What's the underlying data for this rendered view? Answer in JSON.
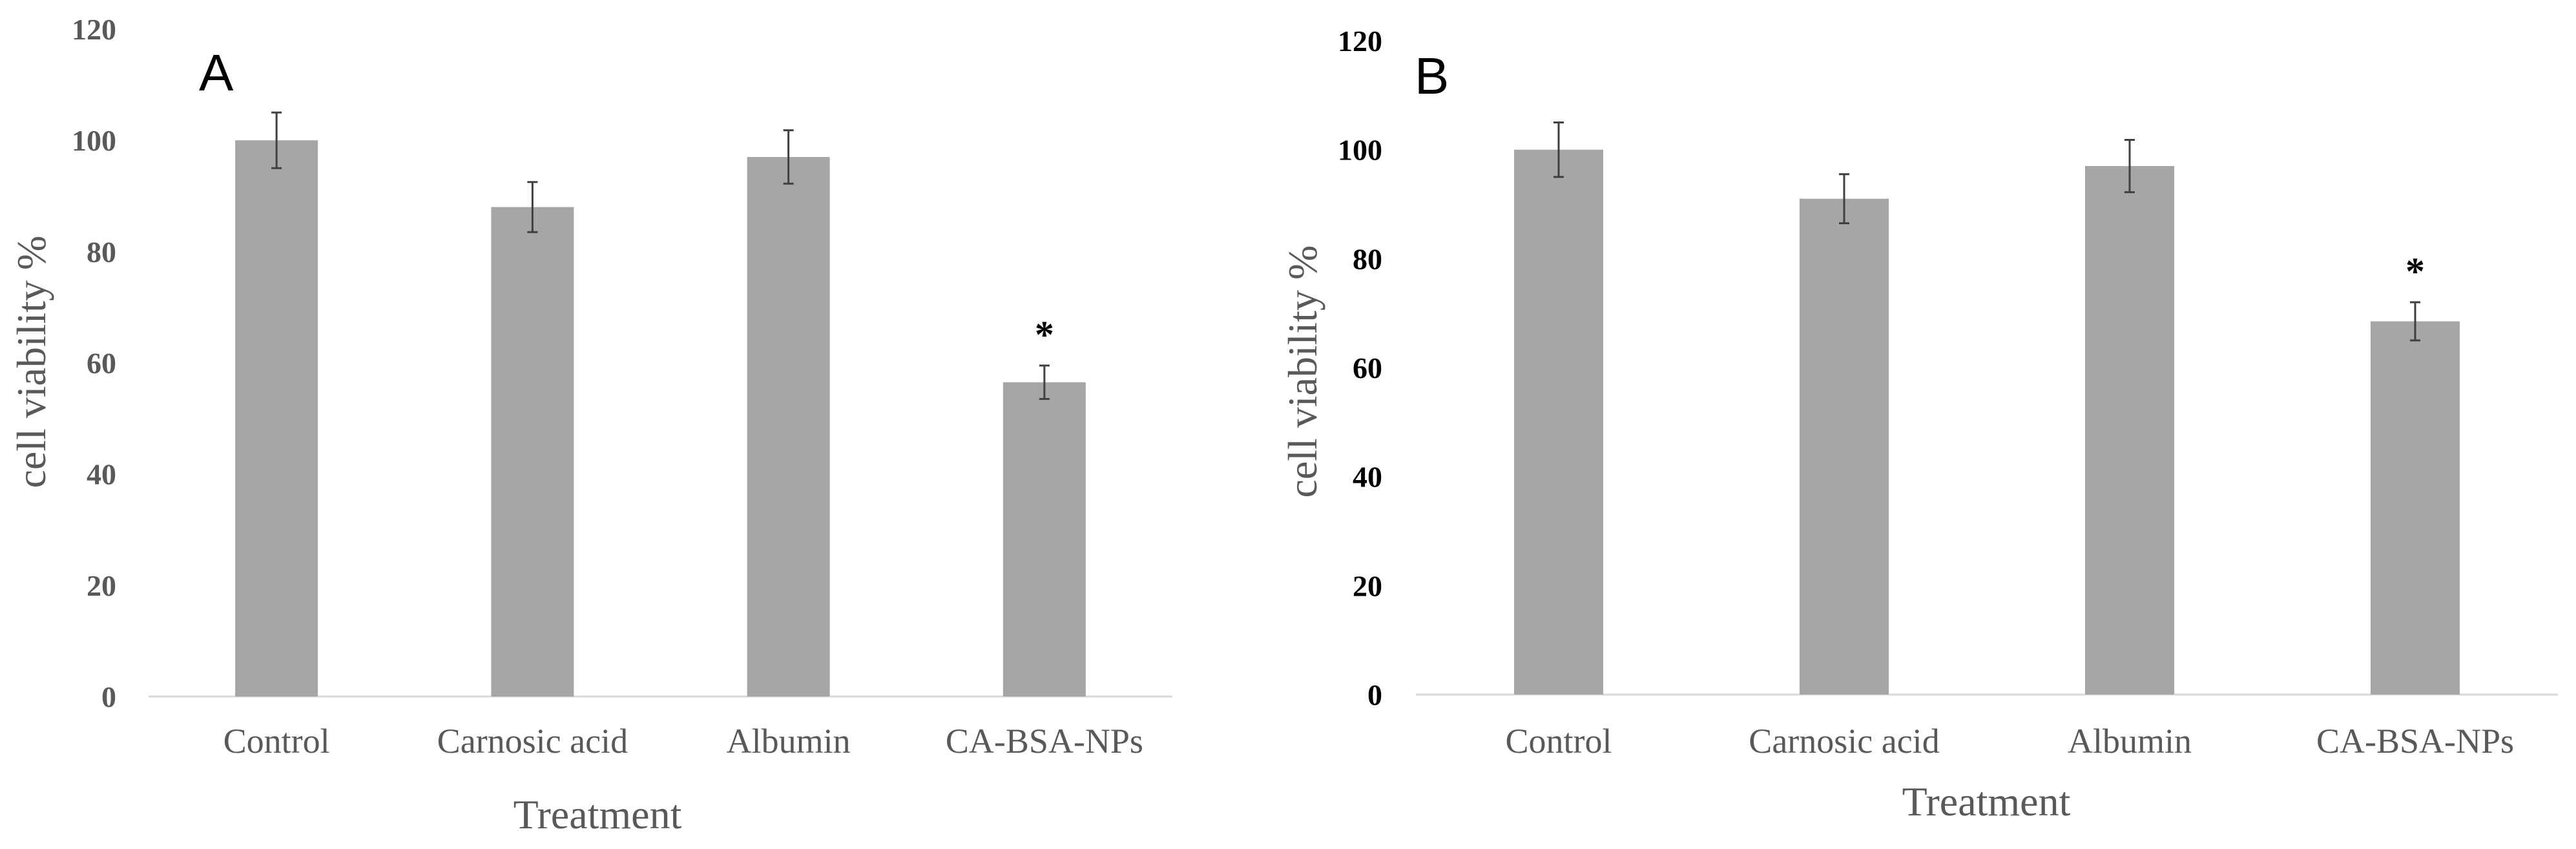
{
  "chart_data": [
    {
      "type": "bar",
      "panel_label": "A",
      "categories": [
        "Control",
        "Carnosic acid",
        "Albumin",
        "CA-BSA-NPs"
      ],
      "values": [
        100,
        88,
        97,
        56.5
      ],
      "errors": [
        5,
        4.5,
        4.8,
        3
      ],
      "annotations": [
        "",
        "",
        "",
        "*"
      ],
      "xlabel": "Treatment",
      "ylabel": "cell viability %",
      "ylim": [
        0,
        120
      ],
      "yticks": [
        "0",
        "20",
        "40",
        "60",
        "80",
        "100",
        "120"
      ],
      "bar_color": "#a6a6a6",
      "tick_color": "#595959"
    },
    {
      "type": "bar",
      "panel_label": "B",
      "categories": [
        "Control",
        "Carnosic acid",
        "Albumin",
        "CA-BSA-NPs"
      ],
      "values": [
        100,
        91,
        97,
        68.5
      ],
      "errors": [
        5,
        4.5,
        4.8,
        3.5
      ],
      "annotations": [
        "",
        "",
        "",
        "*"
      ],
      "xlabel": "Treatment",
      "ylabel": "cell viability %",
      "ylim": [
        0,
        120
      ],
      "yticks": [
        "0",
        "20",
        "40",
        "60",
        "80",
        "100",
        "120"
      ],
      "bar_color": "#a6a6a6",
      "tick_color": "#000000"
    }
  ]
}
